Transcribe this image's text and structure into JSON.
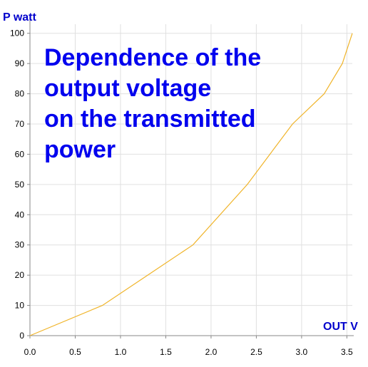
{
  "chart_data": {
    "type": "line",
    "title_lines": [
      "Dependence of the",
      "output voltage",
      "on the transmitted",
      "power"
    ],
    "xlabel": "OUT V",
    "ylabel": "P watt",
    "xlim": [
      0,
      3.56
    ],
    "ylim": [
      0,
      103
    ],
    "xticks": [
      "0.0",
      "0.5",
      "1.0",
      "1.5",
      "2.0",
      "2.5",
      "3.0",
      "3.5"
    ],
    "yticks": [
      "0",
      "10",
      "20",
      "30",
      "40",
      "50",
      "60",
      "70",
      "80",
      "90",
      "100"
    ],
    "grid": true,
    "series": [
      {
        "color": "#f0b429",
        "x": [
          0.0,
          0.8,
          1.3,
          1.8,
          2.4,
          2.9,
          3.25,
          3.45,
          3.56
        ],
        "y": [
          0,
          10,
          20,
          30,
          50,
          70,
          80,
          90,
          100
        ]
      }
    ]
  },
  "colors": {
    "grid": "#e0e0e0",
    "axis": "#888888",
    "label": "#0000cc",
    "title": "#0000ee"
  }
}
